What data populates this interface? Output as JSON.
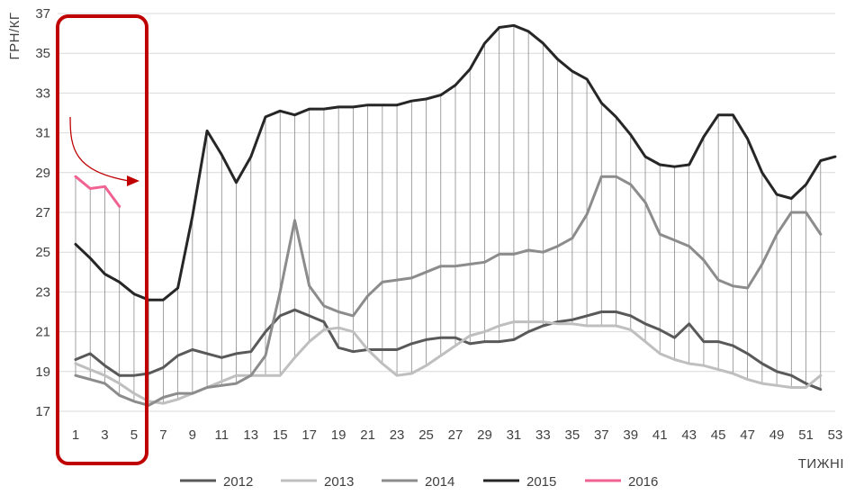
{
  "chart_data": {
    "type": "line",
    "title": "",
    "ylabel": "ГРН/КГ",
    "xlabel": "ТИЖНІ",
    "ylim": [
      17,
      37
    ],
    "yticks": [
      17,
      19,
      21,
      23,
      25,
      27,
      29,
      31,
      33,
      35,
      37
    ],
    "xlim": [
      1,
      53
    ],
    "xticks": [
      1,
      3,
      5,
      7,
      9,
      11,
      13,
      15,
      17,
      19,
      21,
      23,
      25,
      27,
      29,
      31,
      33,
      35,
      37,
      39,
      41,
      43,
      45,
      47,
      49,
      51,
      53
    ],
    "drop_lines": true,
    "legend_position": "bottom",
    "highlight_box_weeks": [
      1,
      5
    ],
    "series": [
      {
        "name": "2012",
        "color": "#595959",
        "x": [
          1,
          2,
          3,
          4,
          5,
          6,
          7,
          8,
          9,
          10,
          11,
          12,
          13,
          14,
          15,
          16,
          17,
          18,
          19,
          20,
          21,
          22,
          23,
          24,
          25,
          26,
          27,
          28,
          29,
          30,
          31,
          32,
          33,
          34,
          35,
          36,
          37,
          38,
          39,
          40,
          41,
          42,
          43,
          44,
          45,
          46,
          47,
          48,
          49,
          50,
          51,
          52
        ],
        "values": [
          19.6,
          19.9,
          19.3,
          18.8,
          18.8,
          18.9,
          19.2,
          19.8,
          20.1,
          19.9,
          19.7,
          19.9,
          20.0,
          21.0,
          21.8,
          22.1,
          21.8,
          21.5,
          20.2,
          20.0,
          20.1,
          20.1,
          20.1,
          20.4,
          20.6,
          20.7,
          20.7,
          20.4,
          20.5,
          20.5,
          20.6,
          21.0,
          21.3,
          21.5,
          21.6,
          21.8,
          22.0,
          22.0,
          21.8,
          21.4,
          21.1,
          20.7,
          21.4,
          20.5,
          20.5,
          20.3,
          19.9,
          19.4,
          19.0,
          18.8,
          18.4,
          18.1
        ]
      },
      {
        "name": "2013",
        "color": "#bfbfbf",
        "x": [
          1,
          2,
          3,
          4,
          5,
          6,
          7,
          8,
          9,
          10,
          11,
          12,
          13,
          14,
          15,
          16,
          17,
          18,
          19,
          20,
          21,
          22,
          23,
          24,
          25,
          26,
          27,
          28,
          29,
          30,
          31,
          32,
          33,
          34,
          35,
          36,
          37,
          38,
          39,
          40,
          41,
          42,
          43,
          44,
          45,
          46,
          47,
          48,
          49,
          50,
          51,
          52
        ],
        "values": [
          19.4,
          19.1,
          18.8,
          18.4,
          17.9,
          17.5,
          17.4,
          17.6,
          17.9,
          18.2,
          18.5,
          18.8,
          18.8,
          18.8,
          18.8,
          19.7,
          20.5,
          21.1,
          21.2,
          21.0,
          20.1,
          19.4,
          18.8,
          18.9,
          19.3,
          19.8,
          20.3,
          20.8,
          21.0,
          21.3,
          21.5,
          21.5,
          21.5,
          21.4,
          21.4,
          21.3,
          21.3,
          21.3,
          21.1,
          20.5,
          19.9,
          19.6,
          19.4,
          19.3,
          19.1,
          18.9,
          18.6,
          18.4,
          18.3,
          18.2,
          18.2,
          18.8
        ]
      },
      {
        "name": "2014",
        "color": "#8c8c8c",
        "x": [
          1,
          2,
          3,
          4,
          5,
          6,
          7,
          8,
          9,
          10,
          11,
          12,
          13,
          14,
          15,
          16,
          17,
          18,
          19,
          20,
          21,
          22,
          23,
          24,
          25,
          26,
          27,
          28,
          29,
          30,
          31,
          32,
          33,
          34,
          35,
          36,
          37,
          38,
          39,
          40,
          41,
          42,
          43,
          44,
          45,
          46,
          47,
          48,
          49,
          50,
          51,
          52
        ],
        "values": [
          18.8,
          18.6,
          18.4,
          17.8,
          17.5,
          17.3,
          17.7,
          17.9,
          17.9,
          18.2,
          18.3,
          18.4,
          18.8,
          19.8,
          23.0,
          26.6,
          23.3,
          22.3,
          22.0,
          21.8,
          22.8,
          23.5,
          23.6,
          23.7,
          24.0,
          24.3,
          24.3,
          24.4,
          24.5,
          24.9,
          24.9,
          25.1,
          25.0,
          25.3,
          25.7,
          26.9,
          28.8,
          28.8,
          28.4,
          27.5,
          25.9,
          25.6,
          25.3,
          24.6,
          23.6,
          23.3,
          23.2,
          24.4,
          25.9,
          27.0,
          27.0,
          25.9
        ]
      },
      {
        "name": "2015",
        "color": "#262626",
        "x": [
          1,
          2,
          3,
          4,
          5,
          6,
          7,
          8,
          9,
          10,
          11,
          12,
          13,
          14,
          15,
          16,
          17,
          18,
          19,
          20,
          21,
          22,
          23,
          24,
          25,
          26,
          27,
          28,
          29,
          30,
          31,
          32,
          33,
          34,
          35,
          36,
          37,
          38,
          39,
          40,
          41,
          42,
          43,
          44,
          45,
          46,
          47,
          48,
          49,
          50,
          51,
          52,
          53
        ],
        "values": [
          25.4,
          24.7,
          23.9,
          23.5,
          22.9,
          22.6,
          22.6,
          23.2,
          26.8,
          31.1,
          29.9,
          28.5,
          29.8,
          31.8,
          32.1,
          31.9,
          32.2,
          32.2,
          32.3,
          32.3,
          32.4,
          32.4,
          32.4,
          32.6,
          32.7,
          32.9,
          33.4,
          34.2,
          35.5,
          36.3,
          36.4,
          36.1,
          35.5,
          34.7,
          34.1,
          33.7,
          32.5,
          31.8,
          30.9,
          29.8,
          29.4,
          29.3,
          29.4,
          30.8,
          31.9,
          31.9,
          30.7,
          29.0,
          27.9,
          27.7,
          28.4,
          29.6,
          29.8
        ]
      },
      {
        "name": "2016",
        "color": "#f06292",
        "x": [
          1,
          2,
          3,
          4
        ],
        "values": [
          28.8,
          28.2,
          28.3,
          27.3
        ]
      }
    ]
  }
}
